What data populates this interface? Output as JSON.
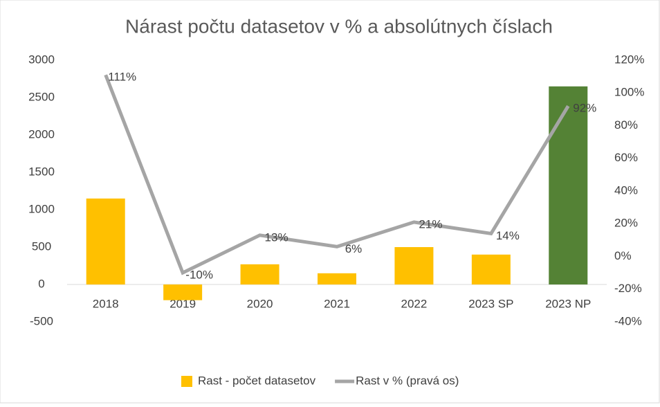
{
  "chart_data": {
    "type": "bar_line",
    "title": "Nárast počtu datasetov v % a absolútnych číslach",
    "categories": [
      "2018",
      "2019",
      "2020",
      "2021",
      "2022",
      "2023 SP",
      "2023 NP"
    ],
    "series": [
      {
        "name": "Rast - počet datasetov",
        "type": "bar",
        "color": "#FFC000",
        "colors": [
          "#FFC000",
          "#FFC000",
          "#FFC000",
          "#FFC000",
          "#FFC000",
          "#FFC000",
          "#548235"
        ],
        "values": [
          1150,
          -210,
          270,
          150,
          500,
          400,
          2650
        ]
      },
      {
        "name": "Rast v % (pravá os)",
        "type": "line",
        "axis": "y2",
        "color": "#A5A5A5",
        "values": [
          111,
          -10,
          13,
          6,
          21,
          14,
          92
        ],
        "value_labels": [
          "111%",
          "-10%",
          "13%",
          "6%",
          "21%",
          "14%",
          "92%"
        ]
      }
    ],
    "ylim": [
      -500,
      3000
    ],
    "yticks": [
      -500,
      0,
      500,
      1000,
      1500,
      2000,
      2500,
      3000
    ],
    "y2lim": [
      -40,
      120
    ],
    "y2ticks": [
      {
        "value": -40,
        "label": "-40%"
      },
      {
        "value": -20,
        "label": "-20%"
      },
      {
        "value": 0,
        "label": "0%"
      },
      {
        "value": 20,
        "label": "20%"
      },
      {
        "value": 40,
        "label": "40%"
      },
      {
        "value": 60,
        "label": "60%"
      },
      {
        "value": 80,
        "label": "80%"
      },
      {
        "value": 100,
        "label": "100%"
      },
      {
        "value": 120,
        "label": "120%"
      }
    ],
    "legend": "bottom"
  }
}
